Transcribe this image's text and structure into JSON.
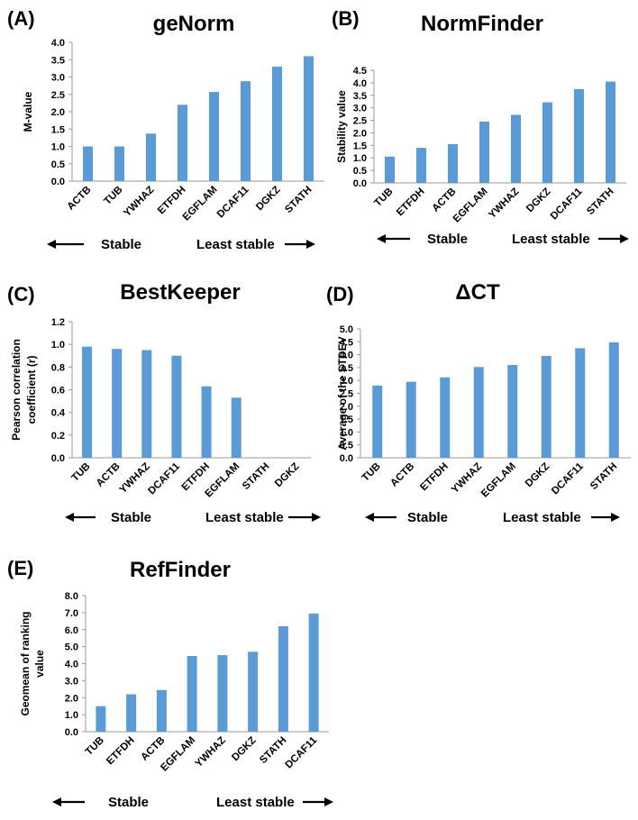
{
  "chart_data": [
    {
      "type": "bar",
      "panel_label": "(A)",
      "title": "geNorm",
      "xlabel": "",
      "ylabel": "M-value",
      "categories": [
        "ACTB",
        "TUB",
        "YWHAZ",
        "ETFDH",
        "EGFLAM",
        "DCAF11",
        "DGKZ",
        "STATH"
      ],
      "values": [
        1.0,
        1.0,
        1.37,
        2.2,
        2.57,
        2.88,
        3.3,
        3.6
      ],
      "ylim": [
        0,
        4.0
      ],
      "yticks": [
        "0.0",
        "0.5",
        "1.0",
        "1.5",
        "2.0",
        "2.5",
        "3.0",
        "3.5",
        "4.0"
      ],
      "stable_label": "Stable",
      "least_stable_label": "Least stable",
      "color": "#5b9bd5"
    },
    {
      "type": "bar",
      "panel_label": "(B)",
      "title": "NormFinder",
      "xlabel": "",
      "ylabel": "Stability value",
      "categories": [
        "TUB",
        "ETFDH",
        "ACTB",
        "EGFLAM",
        "YWHAZ",
        "DGKZ",
        "DCAF11",
        "STATH"
      ],
      "values": [
        1.05,
        1.4,
        1.55,
        2.45,
        2.72,
        3.22,
        3.75,
        4.05
      ],
      "ylim": [
        0,
        4.5
      ],
      "yticks": [
        "0.0",
        "0.5",
        "1.0",
        "1.5",
        "2.0",
        "2.5",
        "3.0",
        "3.5",
        "4.0",
        "4.5"
      ],
      "stable_label": "Stable",
      "least_stable_label": "Least stable",
      "color": "#5b9bd5"
    },
    {
      "type": "bar",
      "panel_label": "(C)",
      "title": "BestKeeper",
      "xlabel": "",
      "ylabel": "Pearson correlation coefficient (r)",
      "ylabel_lines": [
        "Pearson correlation",
        "coefficient (r)"
      ],
      "categories": [
        "TUB",
        "ACTB",
        "YWHAZ",
        "DCAF11",
        "ETFDH",
        "EGFLAM",
        "STATH",
        "DGKZ"
      ],
      "values": [
        0.98,
        0.96,
        0.95,
        0.9,
        0.63,
        0.53,
        0,
        0
      ],
      "ylim": [
        0,
        1.2
      ],
      "yticks": [
        "0.0",
        "0.2",
        "0.4",
        "0.6",
        "0.8",
        "1.0",
        "1.2"
      ],
      "stable_label": "Stable",
      "least_stable_label": "Least stable",
      "color": "#5b9bd5"
    },
    {
      "type": "bar",
      "panel_label": "(D)",
      "title": "ΔCT",
      "xlabel": "",
      "ylabel": "Average of the STDEV",
      "categories": [
        "TUB",
        "ACTB",
        "ETFDH",
        "YWHAZ",
        "EGFLAM",
        "DGKZ",
        "DCAF11",
        "STATH"
      ],
      "values": [
        2.8,
        2.95,
        3.12,
        3.52,
        3.6,
        3.95,
        4.25,
        4.48
      ],
      "ylim": [
        0,
        5.0
      ],
      "yticks": [
        "0.0",
        "0.5",
        "1.0",
        "1.5",
        "2.0",
        "2.5",
        "3.0",
        "3.5",
        "4.0",
        "4.5",
        "5.0"
      ],
      "stable_label": "Stable",
      "least_stable_label": "Least stable",
      "color": "#5b9bd5"
    },
    {
      "type": "bar",
      "panel_label": "(E)",
      "title": "RefFinder",
      "xlabel": "",
      "ylabel": "Geomean of ranking value",
      "ylabel_lines": [
        "Geomean of ranking",
        "value"
      ],
      "categories": [
        "TUB",
        "ETFDH",
        "ACTB",
        "EGFLAM",
        "YWHAZ",
        "DGKZ",
        "STATH",
        "DCAF11"
      ],
      "values": [
        1.5,
        2.2,
        2.45,
        4.45,
        4.5,
        4.7,
        6.2,
        6.95
      ],
      "ylim": [
        0,
        8.0
      ],
      "yticks": [
        "0.0",
        "1.0",
        "2.0",
        "3.0",
        "4.0",
        "5.0",
        "6.0",
        "7.0",
        "8.0"
      ],
      "stable_label": "Stable",
      "least_stable_label": "Least stable",
      "color": "#5b9bd5"
    }
  ]
}
